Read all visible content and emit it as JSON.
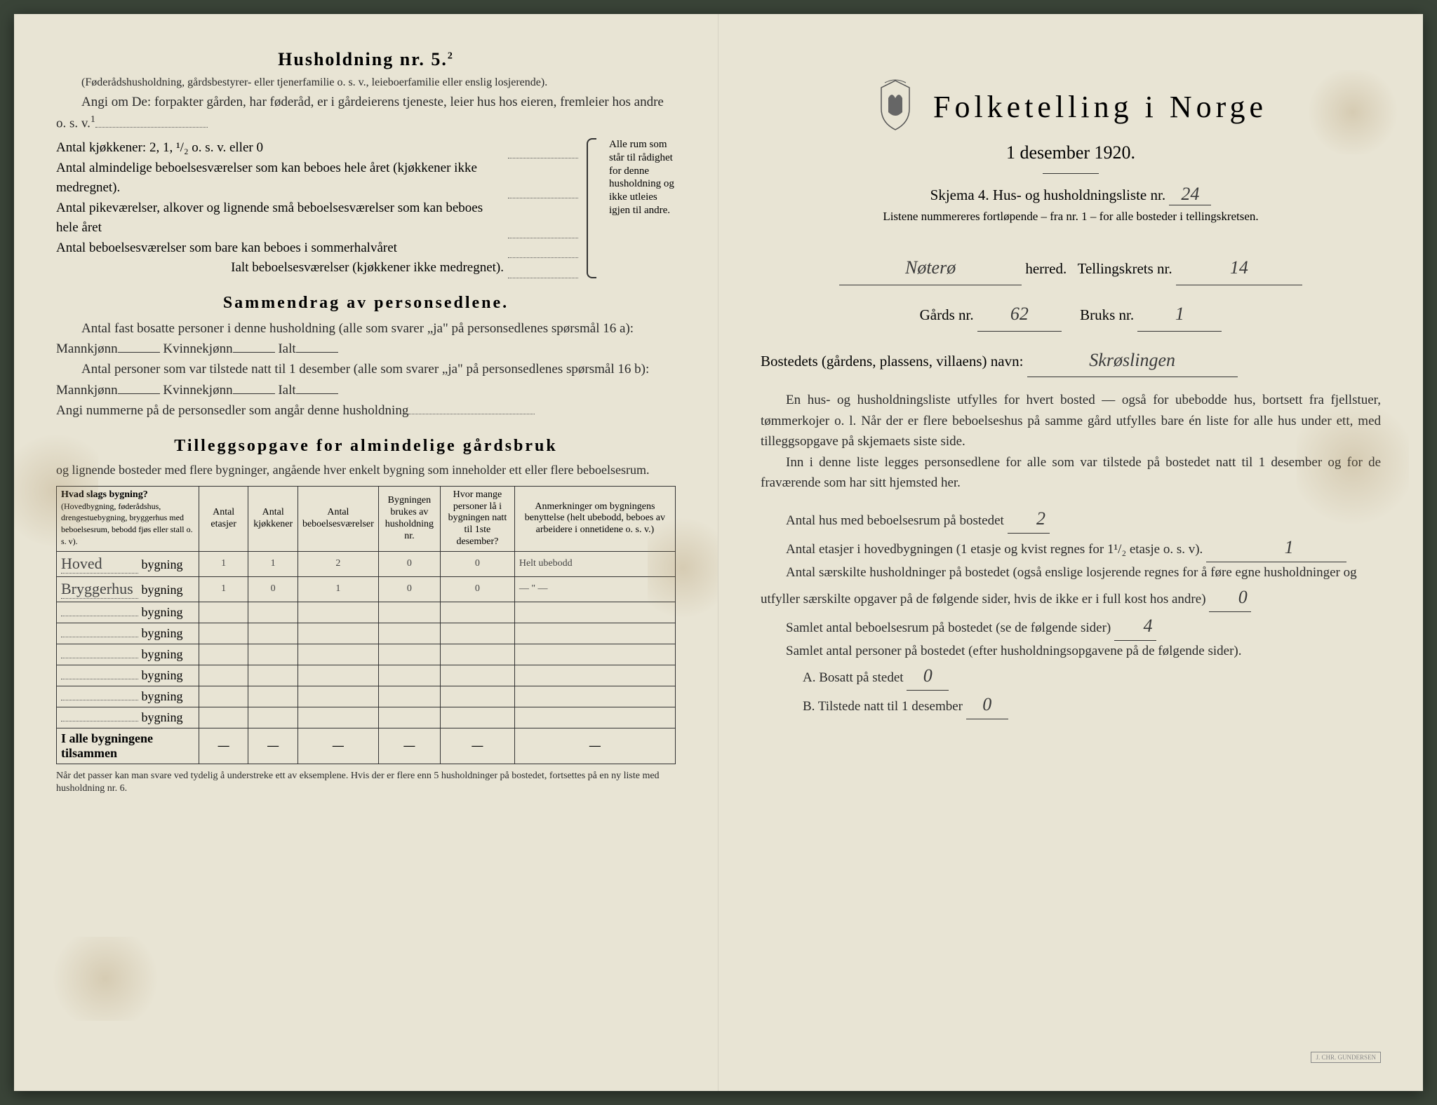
{
  "left": {
    "household_title": "Husholdning nr. 5.",
    "household_sup": "2",
    "household_desc": "(Føderådshusholdning, gårdsbestyrer- eller tjenerfamilie o. s. v., leieboerfamilie eller enslig losjerende).",
    "angi_line": "Angi om De: forpakter gården, har føderåd, er i gårdeierens tjeneste, leier hus hos eieren, fremleier hos andre o. s. v.",
    "kitchens": "Antal kjøkkener: 2, 1, ¹/₂ o. s. v. eller 0",
    "rooms": {
      "r1": "Antal almindelige beboelsesværelser som kan beboes hele året (kjøkkener ikke medregnet).",
      "r2": "Antal pikeværelser, alkover og lignende små beboelsesværelser som kan beboes hele året",
      "r3": "Antal beboelsesværelser som bare kan beboes i sommerhalvåret",
      "r4": "Ialt beboelsesværelser (kjøkkener ikke medregnet)."
    },
    "brace_text": "Alle rum som står til rådighet for denne husholdning og ikke utleies igjen til andre.",
    "sammendrag_title": "Sammendrag av personsedlene.",
    "s1": "Antal fast bosatte personer i denne husholdning (alle som svarer „ja\" på personsedlenes spørsmål 16 a): Mannkjønn",
    "s1b": "Kvinnekjønn",
    "s1c": "Ialt",
    "s2": "Antal personer som var tilstede natt til 1 desember (alle som svarer „ja\" på personsedlenes spørsmål 16 b): Mannkjønn",
    "s3": "Angi nummerne på de personsedler som angår denne husholdning",
    "tillegg_title": "Tilleggsopgave for almindelige gårdsbruk",
    "tillegg_desc": "og lignende bosteder med flere bygninger, angående hver enkelt bygning som inneholder ett eller flere beboelsesrum.",
    "table": {
      "headers": {
        "h1": "Hvad slags bygning?",
        "h1sub": "(Hovedbygning, føderådshus, drengestuebygning, bryggerhus med beboelsesrum, bebodd fjøs eller stall o. s. v).",
        "h2": "Antal etasjer",
        "h3": "Antal kjøkkener",
        "h4": "Antal beboelsesværelser",
        "h5": "Bygningen brukes av husholdning nr.",
        "h6": "Hvor mange personer lå i bygningen natt til 1ste desember?",
        "h7": "Anmerkninger om bygningens benyttelse (helt ubebodd, beboes av arbeidere i onnetidene o. s. v.)"
      },
      "row_suffix": "bygning",
      "rows": [
        {
          "name": "Hoved",
          "etasjer": "1",
          "kjokken": "1",
          "vaer": "2",
          "hushold": "0",
          "personer": "0",
          "anm": "Helt ubebodd"
        },
        {
          "name": "Bryggerhus",
          "etasjer": "1",
          "kjokken": "0",
          "vaer": "1",
          "hushold": "0",
          "personer": "0",
          "anm": "— \" —"
        },
        {
          "name": "",
          "etasjer": "",
          "kjokken": "",
          "vaer": "",
          "hushold": "",
          "personer": "",
          "anm": ""
        },
        {
          "name": "",
          "etasjer": "",
          "kjokken": "",
          "vaer": "",
          "hushold": "",
          "personer": "",
          "anm": ""
        },
        {
          "name": "",
          "etasjer": "",
          "kjokken": "",
          "vaer": "",
          "hushold": "",
          "personer": "",
          "anm": ""
        },
        {
          "name": "",
          "etasjer": "",
          "kjokken": "",
          "vaer": "",
          "hushold": "",
          "personer": "",
          "anm": ""
        },
        {
          "name": "",
          "etasjer": "",
          "kjokken": "",
          "vaer": "",
          "hushold": "",
          "personer": "",
          "anm": ""
        },
        {
          "name": "",
          "etasjer": "",
          "kjokken": "",
          "vaer": "",
          "hushold": "",
          "personer": "",
          "anm": ""
        }
      ],
      "total_label": "I alle bygningene tilsammen",
      "dash": "—"
    },
    "footnote": "Når det passer kan man svare ved tydelig å understreke ett av eksemplene.\nHvis der er flere enn 5 husholdninger på bostedet, fortsettes på en ny liste med husholdning nr. 6."
  },
  "right": {
    "title": "Folketelling i Norge",
    "subtitle": "1 desember 1920.",
    "skjema": "Skjema 4. Hus- og husholdningsliste nr.",
    "skjema_nr": "24",
    "listene": "Listene nummereres fortløpende – fra nr. 1 – for alle bosteder i tellingskretsen.",
    "herred_value": "Nøterø",
    "herred_label": "herred.",
    "krets_label": "Tellingskrets nr.",
    "krets_nr": "14",
    "gards_label": "Gårds nr.",
    "gards_nr": "62",
    "bruks_label": "Bruks nr.",
    "bruks_nr": "1",
    "bosted_label": "Bostedets (gårdens, plassens, villaens) navn:",
    "bosted_value": "Skrøslingen",
    "body1": "En hus- og husholdningsliste utfylles for hvert bosted — også for ubebodde hus, bortsett fra fjellstuer, tømmerkojer o. l. Når der er flere beboelseshus på samme gård utfylles bare én liste for alle hus under ett, med tilleggsopgave på skjemaets siste side.",
    "body2": "Inn i denne liste legges personsedlene for alle som var tilstede på bostedet natt til 1 desember og for de fraværende som har sitt hjemsted her.",
    "sum1_label": "Antal hus med beboelsesrum på bostedet",
    "sum1_val": "2",
    "sum2_label": "Antal etasjer i hovedbygningen (1 etasje og kvist regnes for 1¹/₂ etasje o. s. v).",
    "sum2_val": "1",
    "sum3_label": "Antal særskilte husholdninger på bostedet (også enslige losjerende regnes for å føre egne husholdninger og utfyller særskilte opgaver på de følgende sider, hvis de ikke er i full kost hos andre)",
    "sum3_val": "0",
    "sum4_label": "Samlet antal beboelsesrum på bostedet (se de følgende sider)",
    "sum4_val": "4",
    "sum5_label": "Samlet antal personer på bostedet (efter husholdningsopgavene på de følgende sider).",
    "a_label": "A. Bosatt på stedet",
    "a_val": "0",
    "b_label": "B. Tilstede natt til 1 desember",
    "b_val": "0",
    "stamp": "J. CHR. GUNDERSEN"
  }
}
